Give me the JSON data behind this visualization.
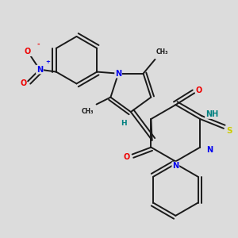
{
  "background_color": "#dcdcdc",
  "bond_color": "#1a1a1a",
  "atom_colors": {
    "N": "#0000ee",
    "O": "#ee0000",
    "S": "#cccc00",
    "NH": "#008080",
    "H": "#008080",
    "C": "#1a1a1a"
  },
  "figsize": [
    3.0,
    3.0
  ],
  "dpi": 100
}
